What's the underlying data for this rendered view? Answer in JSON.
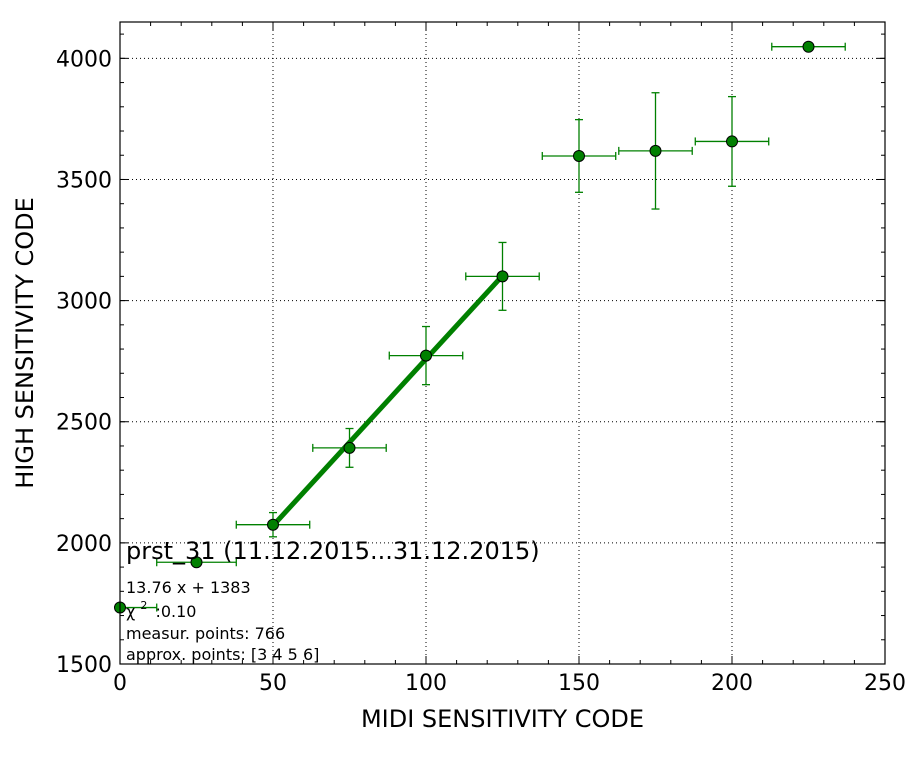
{
  "chart_data": {
    "type": "scatter",
    "xlabel": "MIDI SENSITIVITY CODE",
    "ylabel": "HIGH SENSITIVITY CODE",
    "xlim": [
      0,
      250
    ],
    "ylim": [
      1500,
      4150
    ],
    "xticks": [
      0,
      50,
      100,
      150,
      200,
      250
    ],
    "yticks": [
      1500,
      2000,
      2500,
      3000,
      3500,
      4000
    ],
    "grid": true,
    "color": "#008000",
    "points": [
      {
        "x": 0,
        "y": 1733,
        "xerr": 12,
        "yerr": 0
      },
      {
        "x": 25,
        "y": 1920,
        "xerr": 13,
        "yerr": 0
      },
      {
        "x": 50,
        "y": 2075,
        "xerr": 12,
        "yerr": 50
      },
      {
        "x": 75,
        "y": 2392,
        "xerr": 12,
        "yerr": 80
      },
      {
        "x": 100,
        "y": 2773,
        "xerr": 12,
        "yerr": 120
      },
      {
        "x": 125,
        "y": 3100,
        "xerr": 12,
        "yerr": 140
      },
      {
        "x": 150,
        "y": 3597,
        "xerr": 12,
        "yerr": 150
      },
      {
        "x": 175,
        "y": 3618,
        "xerr": 12,
        "yerr": 240
      },
      {
        "x": 200,
        "y": 3657,
        "xerr": 12,
        "yerr": 185
      },
      {
        "x": 225,
        "y": 4048,
        "xerr": 12,
        "yerr": 15
      }
    ],
    "fit": {
      "x_start": 50,
      "x_end": 125,
      "slope": 13.76,
      "intercept": 1383
    },
    "annotation": {
      "title": "prst_31 (11.12.2015...31.12.2015)",
      "equation": "13.76 x + 1383",
      "chi_symbol": "χ",
      "chi_sup": "2",
      "chi_value": ":0.10",
      "measur_points": "measur. points: 766",
      "approx_points": "approx. points: [3 4 5 6]"
    }
  }
}
